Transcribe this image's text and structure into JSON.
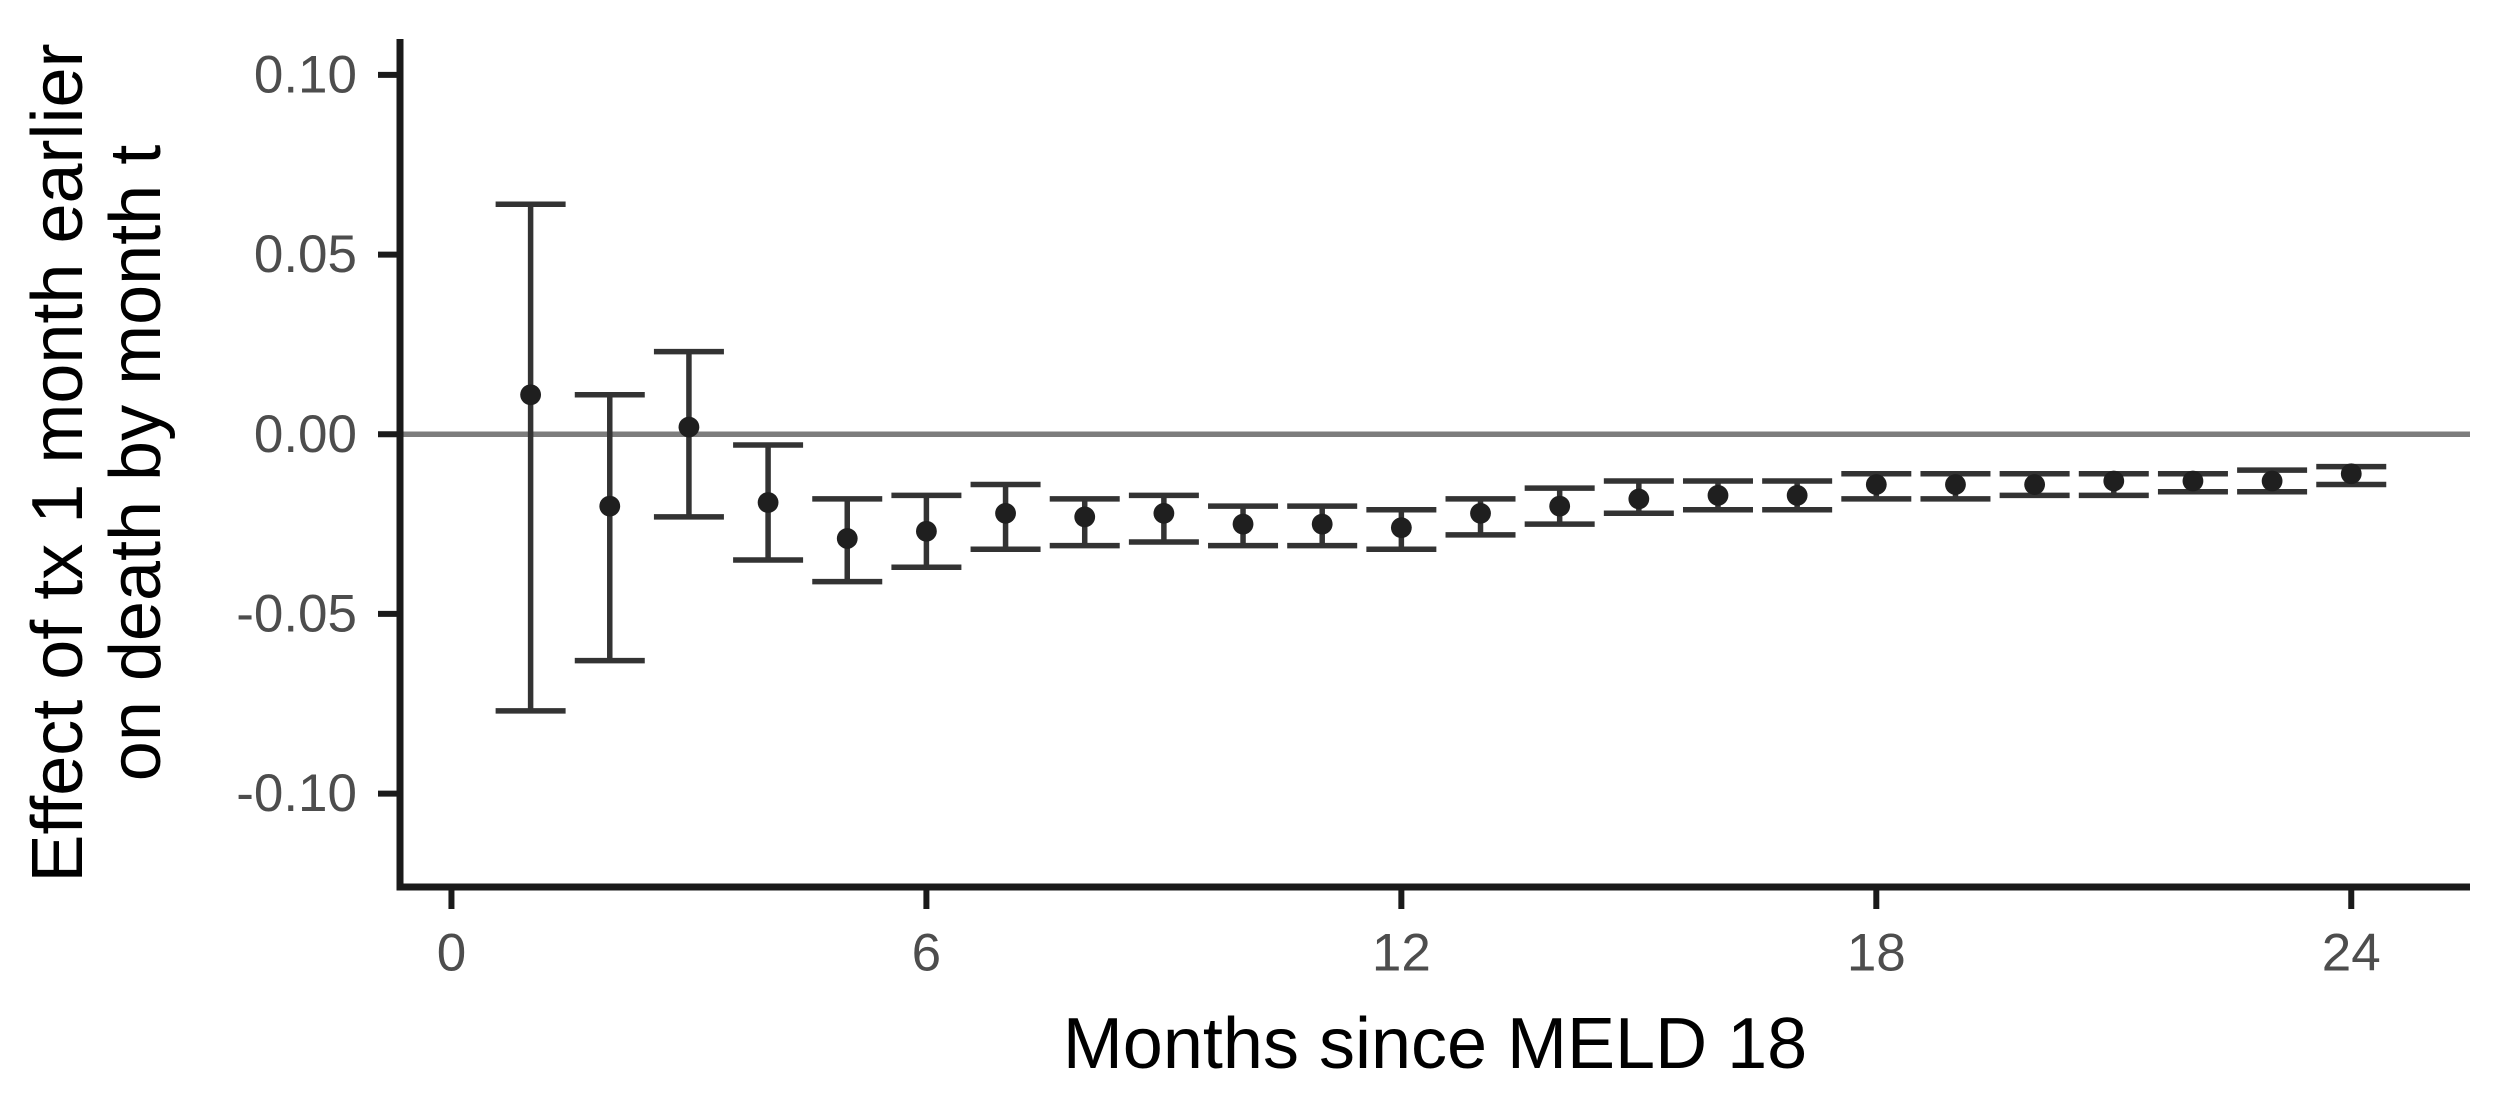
{
  "chart_data": {
    "type": "scatter",
    "subtype": "point-estimates-with-error-bars",
    "title": "",
    "xlabel": "Months since MELD 18",
    "ylabel_line1": "Effect of tx 1 month earlier",
    "ylabel_line2": "on death by month t",
    "x": [
      1,
      2,
      3,
      4,
      5,
      6,
      7,
      8,
      9,
      10,
      11,
      12,
      13,
      14,
      15,
      16,
      17,
      18,
      19,
      20,
      21,
      22,
      23,
      24
    ],
    "estimates": [
      0.011,
      -0.02,
      0.002,
      -0.019,
      -0.029,
      -0.027,
      -0.022,
      -0.023,
      -0.022,
      -0.025,
      -0.025,
      -0.026,
      -0.022,
      -0.02,
      -0.018,
      -0.017,
      -0.017,
      -0.014,
      -0.014,
      -0.014,
      -0.013,
      -0.013,
      -0.013,
      -0.011
    ],
    "ci_low": [
      -0.077,
      -0.063,
      -0.023,
      -0.035,
      -0.041,
      -0.037,
      -0.032,
      -0.031,
      -0.03,
      -0.031,
      -0.031,
      -0.032,
      -0.028,
      -0.025,
      -0.022,
      -0.021,
      -0.021,
      -0.018,
      -0.018,
      -0.017,
      -0.017,
      -0.016,
      -0.016,
      -0.014
    ],
    "ci_high": [
      0.064,
      0.011,
      0.023,
      -0.003,
      -0.018,
      -0.017,
      -0.014,
      -0.018,
      -0.017,
      -0.02,
      -0.02,
      -0.021,
      -0.018,
      -0.015,
      -0.013,
      -0.013,
      -0.013,
      -0.011,
      -0.011,
      -0.011,
      -0.011,
      -0.011,
      -0.01,
      -0.009
    ],
    "reference_line_y": 0,
    "y_ticks": [
      0.1,
      0.05,
      0.0,
      -0.05,
      -0.1
    ],
    "y_tick_labels": [
      "0.10",
      "0.05",
      "0.00",
      "-0.05",
      "-0.10"
    ],
    "x_ticks": [
      0,
      6,
      12,
      18,
      24
    ],
    "x_tick_labels": [
      "0",
      "6",
      "12",
      "18",
      "24"
    ],
    "xlim": [
      -0.65,
      25.5
    ],
    "ylim": [
      -0.126,
      0.11
    ],
    "grid": "off",
    "legend": "none",
    "colors": {
      "background": "#ffffff",
      "axis_line": "#1a1a1a",
      "tick_label": "#4d4d4d",
      "axis_title": "#000000",
      "error_bar": "#333333",
      "point": "#1f1f1f",
      "zero_line": "#7d7d7d"
    }
  }
}
